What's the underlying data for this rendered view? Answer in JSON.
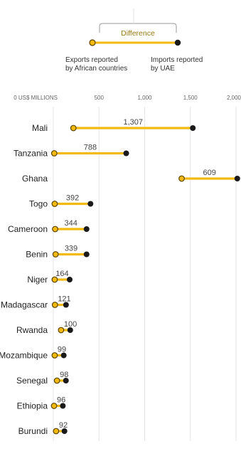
{
  "legend": {
    "difference_label": "Difference",
    "exports_line1": "Exports reported",
    "exports_line2": "by African countries",
    "imports_line1": "Imports reported",
    "imports_line2": "by UAE"
  },
  "colors": {
    "bar": "#f2b90f",
    "export_dot_fill": "#f2b90f",
    "export_dot_stroke": "#5a4400",
    "import_dot": "#1a1a1a",
    "grid": "#e6e6e6"
  },
  "chart_data": {
    "type": "dumbbell",
    "xlabel": "",
    "ylabel": "",
    "x_ticks": [
      {
        "value": 0,
        "label": "0 US$ MILLIONS"
      },
      {
        "value": 500,
        "label": "500"
      },
      {
        "value": 1000,
        "label": "1,000"
      },
      {
        "value": 1500,
        "label": "1,500"
      },
      {
        "value": 2000,
        "label": "2,000"
      }
    ],
    "xlim": [
      0,
      2000
    ],
    "grid": true,
    "series": [
      {
        "name": "Exports reported by African countries"
      },
      {
        "name": "Imports reported by UAE"
      }
    ],
    "rows": [
      {
        "country": "Mali",
        "exports": 220,
        "imports": 1527,
        "difference": "1,307"
      },
      {
        "country": "Tanzania",
        "exports": 10,
        "imports": 798,
        "difference": "788"
      },
      {
        "country": "Ghana",
        "exports": 1405,
        "imports": 2014,
        "difference": "609"
      },
      {
        "country": "Togo",
        "exports": 15,
        "imports": 407,
        "difference": "392"
      },
      {
        "country": "Cameroon",
        "exports": 20,
        "imports": 364,
        "difference": "344"
      },
      {
        "country": "Benin",
        "exports": 25,
        "imports": 364,
        "difference": "339"
      },
      {
        "country": "Niger",
        "exports": 15,
        "imports": 179,
        "difference": "164"
      },
      {
        "country": "Madagascar",
        "exports": 18,
        "imports": 139,
        "difference": "121"
      },
      {
        "country": "Rwanda",
        "exports": 85,
        "imports": 185,
        "difference": "100"
      },
      {
        "country": "Mozambique",
        "exports": 15,
        "imports": 114,
        "difference": "99"
      },
      {
        "country": "Senegal",
        "exports": 40,
        "imports": 138,
        "difference": "98"
      },
      {
        "country": "Ethiopia",
        "exports": 8,
        "imports": 104,
        "difference": "96"
      },
      {
        "country": "Burundi",
        "exports": 30,
        "imports": 122,
        "difference": "92"
      }
    ]
  }
}
